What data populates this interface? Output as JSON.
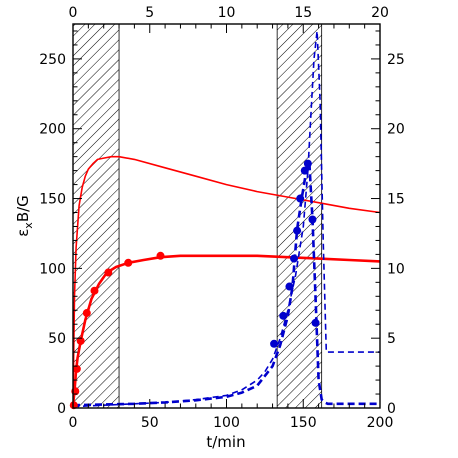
{
  "chart_data": {
    "type": "line",
    "title": "",
    "xlabel": "t/min",
    "ylabel": "ε_x B/G",
    "xlabel_parts": {
      "base": "t/min"
    },
    "ylabel_parts": {
      "base": "ε",
      "sub": "x",
      "rest": "B/G"
    },
    "xlim": [
      0,
      200
    ],
    "ylim": [
      0,
      275
    ],
    "x_ticks": [
      0,
      50,
      100,
      150,
      200
    ],
    "y_ticks": [
      0,
      50,
      100,
      150,
      200,
      250
    ],
    "x2lim": [
      0,
      20
    ],
    "x2_ticks": [
      0,
      5,
      10,
      15,
      20
    ],
    "y2lim": [
      0,
      27.5
    ],
    "y2_ticks": [
      0,
      5,
      10,
      15,
      20,
      25
    ],
    "grid": false,
    "legend": "none",
    "shaded_regions": [
      {
        "axis": "bottom",
        "x": [
          0,
          30
        ]
      },
      {
        "axis": "top",
        "x": [
          13.3,
          16.2
        ]
      }
    ],
    "series": [
      {
        "axis": "bottom-left",
        "color": "#ff0000",
        "style": "thin-solid",
        "x": [
          0,
          1,
          2,
          4,
          6,
          8,
          10,
          13,
          16,
          20,
          25,
          30,
          40,
          60,
          80,
          100,
          120,
          140,
          160,
          180,
          200
        ],
        "y": [
          0,
          80,
          115,
          145,
          158,
          166,
          171,
          175,
          178,
          179,
          180,
          180,
          178,
          172,
          166,
          160,
          155,
          151,
          147,
          143,
          140
        ]
      },
      {
        "axis": "bottom-left",
        "color": "#ff0000",
        "style": "thick-solid",
        "x": [
          0,
          1,
          2,
          3,
          5,
          8,
          12,
          17,
          22,
          28,
          36,
          46,
          57,
          70,
          85,
          100,
          120,
          140,
          160,
          180,
          200
        ],
        "y": [
          2,
          12,
          27,
          36,
          48,
          63,
          78,
          89,
          97,
          101,
          104,
          106,
          108,
          109,
          109,
          109,
          109,
          108,
          107,
          106,
          105
        ]
      },
      {
        "axis": "bottom-left",
        "color": "#ff0000",
        "style": "markers",
        "x": [
          0.5,
          1.5,
          2.5,
          5,
          9,
          14,
          23,
          36,
          57
        ],
        "y": [
          2,
          12,
          28,
          48,
          68,
          84,
          97,
          104,
          109
        ]
      },
      {
        "axis": "top-right",
        "color": "#0000cc",
        "style": "thin-dashed",
        "x": [
          0,
          2,
          4,
          6,
          8,
          10,
          11,
          12,
          12.5,
          13,
          13.5,
          14,
          14.5,
          15,
          15.3,
          15.5,
          15.7,
          15.9,
          16.1,
          16.3,
          16.5,
          17,
          18,
          20
        ],
        "y": [
          0.1,
          0.2,
          0.3,
          0.4,
          0.6,
          0.9,
          1.3,
          2,
          2.6,
          3.5,
          5,
          7,
          9.5,
          13,
          17,
          21,
          25,
          27,
          22,
          12,
          4,
          4,
          4,
          4
        ]
      },
      {
        "axis": "top-right",
        "color": "#0000cc",
        "style": "thick-dashed",
        "x": [
          0,
          2,
          4,
          6,
          8,
          10,
          11,
          12,
          13,
          13.5,
          14,
          14.3,
          14.6,
          14.9,
          15.2,
          15.4,
          15.6,
          15.8,
          16,
          16.2,
          16.4,
          16.6,
          17,
          18,
          20
        ],
        "y": [
          0.2,
          0.25,
          0.3,
          0.4,
          0.55,
          0.8,
          1.1,
          1.6,
          3,
          4.5,
          6.6,
          8.7,
          12.8,
          15,
          17,
          17.5,
          13.5,
          8,
          2,
          0.6,
          0.4,
          0.3,
          0.3,
          0.3,
          0.3
        ]
      },
      {
        "axis": "top-right",
        "color": "#0000cc",
        "style": "markers",
        "x": [
          13.1,
          13.7,
          14.1,
          14.4,
          14.6,
          14.8,
          15.1,
          15.3,
          15.6,
          15.8
        ],
        "y": [
          4.6,
          6.6,
          8.7,
          10.7,
          12.7,
          15,
          17,
          17.5,
          13.5,
          6.1
        ]
      }
    ]
  }
}
